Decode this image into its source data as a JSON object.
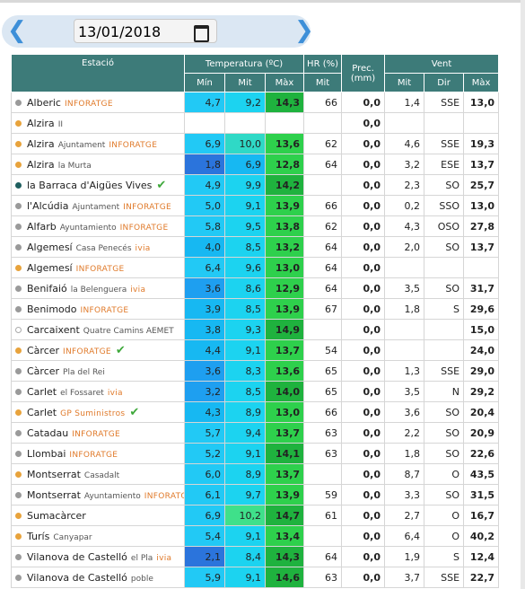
{
  "date_picker": {
    "date": "13/01/2018"
  },
  "table": {
    "header": {
      "station": "Estació",
      "temperature": "Temperatura (ºC)",
      "humidity": "HR (%)",
      "precipitation": "Prec. (mm)",
      "wind": "Vent",
      "t_min": "Mín",
      "t_mit": "Mit",
      "t_max": "Màx",
      "hr_mit": "Mit",
      "w_mit": "Mit",
      "w_dir": "Dir",
      "w_max": "Màx"
    },
    "rows": [
      {
        "dot": "#9a9a9a",
        "name": "Alberic",
        "brand": "INFORATGE",
        "min": "4,7",
        "mit": "9,2",
        "max": "14,3",
        "hr": "66",
        "prec": "0,0",
        "wmit": "1,4",
        "dir": "SSE",
        "wmax": "13,0"
      },
      {
        "dot": "#e8a33c",
        "name": "Alzira",
        "sub": "II",
        "prec": "0,0"
      },
      {
        "dot": "#e8a33c",
        "name": "Alzira",
        "sub": "Ajuntament",
        "brand": "INFORATGE",
        "min": "6,9",
        "mit": "10,0",
        "max": "13,6",
        "hr": "62",
        "prec": "0,0",
        "wmit": "4,6",
        "dir": "SSE",
        "wmax": "19,3"
      },
      {
        "dot": "#e8a33c",
        "name": "Alzira",
        "sub": "la Murta",
        "min": "1,8",
        "mit": "6,9",
        "max": "12,8",
        "hr": "64",
        "prec": "0,0",
        "wmit": "3,2",
        "dir": "ESE",
        "wmax": "13,7"
      },
      {
        "dot": "#1f5f5f",
        "name": "la Barraca d'Aigües Vives",
        "badge": "✔",
        "min": "4,9",
        "mit": "9,9",
        "max": "14,2",
        "prec": "0,0",
        "wmit": "2,3",
        "dir": "SO",
        "wmax": "25,7"
      },
      {
        "dot": "#9a9a9a",
        "name": "l'Alcúdia",
        "sub": "Ajuntament",
        "brand": "INFORATGE",
        "min": "5,0",
        "mit": "9,1",
        "max": "13,9",
        "hr": "66",
        "prec": "0,0",
        "wmit": "0,2",
        "dir": "SSO",
        "wmax": "13,0"
      },
      {
        "dot": "#9a9a9a",
        "name": "Alfarb",
        "sub": "Ayuntamiento",
        "brand": "INFORATGE",
        "min": "5,8",
        "mit": "9,5",
        "max": "13,8",
        "hr": "62",
        "prec": "0,0",
        "wmit": "4,3",
        "dir": "OSO",
        "wmax": "27,8"
      },
      {
        "dot": "#9a9a9a",
        "name": "Algemesí",
        "sub": "Casa Penecés",
        "brand": "ivia",
        "min": "4,0",
        "mit": "8,5",
        "max": "13,2",
        "hr": "64",
        "prec": "0,0",
        "wmit": "2,0",
        "dir": "SO",
        "wmax": "13,7"
      },
      {
        "dot": "#e8a33c",
        "name": "Algemesí",
        "brand": "INFORATGE",
        "min": "6,4",
        "mit": "9,6",
        "max": "13,0",
        "hr": "64",
        "prec": "0,0"
      },
      {
        "dot": "#9a9a9a",
        "name": "Benifaió",
        "sub": "la Belenguera",
        "brand": "ivia",
        "min": "3,6",
        "mit": "8,6",
        "max": "12,9",
        "hr": "64",
        "prec": "0,0",
        "wmit": "3,5",
        "dir": "SO",
        "wmax": "31,7"
      },
      {
        "dot": "#9a9a9a",
        "name": "Benimodo",
        "brand": "INFORATGE",
        "min": "3,9",
        "mit": "8,5",
        "max": "13,9",
        "hr": "67",
        "prec": "0,0",
        "wmit": "1,8",
        "dir": "S",
        "wmax": "29,6"
      },
      {
        "dot": "none",
        "name": "Carcaixent",
        "sub": "Quatre Camins AEMET",
        "min": "3,8",
        "mit": "9,3",
        "max": "14,9",
        "prec": "0,0",
        "wmax": "15,0"
      },
      {
        "dot": "#e8a33c",
        "name": "Càrcer",
        "brand": "INFORATGE",
        "badge": "✔",
        "min": "4,4",
        "mit": "9,1",
        "max": "13,7",
        "hr": "54",
        "prec": "0,0",
        "wmax": "24,0"
      },
      {
        "dot": "#9a9a9a",
        "name": "Càrcer",
        "sub": "Pla del Rei",
        "min": "3,6",
        "mit": "8,3",
        "max": "13,6",
        "hr": "65",
        "prec": "0,0",
        "wmit": "1,3",
        "dir": "SSE",
        "wmax": "29,0"
      },
      {
        "dot": "#9a9a9a",
        "name": "Carlet",
        "sub": "el Fossaret",
        "brand": "ivia",
        "min": "3,2",
        "mit": "8,5",
        "max": "14,0",
        "hr": "65",
        "prec": "0,0",
        "wmit": "3,5",
        "dir": "N",
        "wmax": "29,2"
      },
      {
        "dot": "#e8a33c",
        "name": "Carlet",
        "brand": "GP Suministros",
        "badge": "✔",
        "min": "4,3",
        "mit": "8,9",
        "max": "13,0",
        "hr": "66",
        "prec": "0,0",
        "wmit": "3,6",
        "dir": "SO",
        "wmax": "20,4"
      },
      {
        "dot": "#9a9a9a",
        "name": "Catadau",
        "brand": "INFORATGE",
        "min": "5,7",
        "mit": "9,4",
        "max": "13,7",
        "hr": "63",
        "prec": "0,0",
        "wmit": "2,2",
        "dir": "SO",
        "wmax": "20,9"
      },
      {
        "dot": "#9a9a9a",
        "name": "Llombai",
        "brand": "INFORATGE",
        "min": "5,2",
        "mit": "9,1",
        "max": "14,1",
        "hr": "63",
        "prec": "0,0",
        "wmit": "1,8",
        "dir": "SO",
        "wmax": "22,6"
      },
      {
        "dot": "#e8a33c",
        "name": "Montserrat",
        "sub": "Casadalt",
        "min": "6,0",
        "mit": "8,9",
        "max": "13,7",
        "prec": "0,0",
        "wmit": "8,7",
        "dir": "O",
        "wmax": "43,5"
      },
      {
        "dot": "#9a9a9a",
        "name": "Montserrat",
        "sub": "Ayuntamiento",
        "brand": "INFORATGE",
        "min": "6,1",
        "mit": "9,7",
        "max": "13,9",
        "hr": "59",
        "prec": "0,0",
        "wmit": "3,3",
        "dir": "SO",
        "wmax": "31,5"
      },
      {
        "dot": "#e8a33c",
        "name": "Sumacàrcer",
        "min": "6,9",
        "mit": "10,2",
        "max": "14,7",
        "hr": "61",
        "prec": "0,0",
        "wmit": "2,7",
        "dir": "O",
        "wmax": "16,7"
      },
      {
        "dot": "#e8a33c",
        "name": "Turís",
        "sub": "Canyapar",
        "min": "5,4",
        "mit": "9,1",
        "max": "13,4",
        "prec": "0,0",
        "wmit": "6,4",
        "dir": "O",
        "wmax": "40,2"
      },
      {
        "dot": "#9a9a9a",
        "name": "Vilanova de Castelló",
        "sub": "el Pla",
        "brand": "ivia",
        "min": "2,1",
        "mit": "8,4",
        "max": "14,3",
        "hr": "64",
        "prec": "0,0",
        "wmit": "1,9",
        "dir": "S",
        "wmax": "12,4"
      },
      {
        "dot": "#9a9a9a",
        "name": "Vilanova de Castelló",
        "sub": "poble",
        "min": "5,9",
        "mit": "9,1",
        "max": "14,6",
        "hr": "63",
        "prec": "0,0",
        "wmit": "3,7",
        "dir": "SSE",
        "wmax": "22,7"
      }
    ]
  }
}
